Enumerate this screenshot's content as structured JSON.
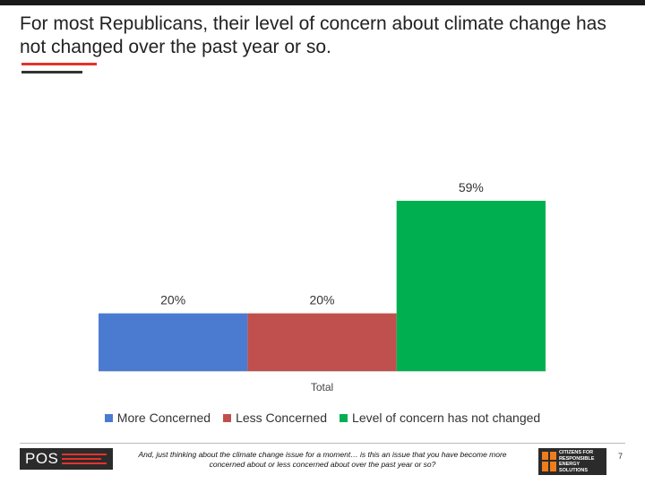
{
  "slide": {
    "title": "For most Republicans, their level of concern about climate change has not changed over the past year or so.",
    "page_number": "7"
  },
  "footer": {
    "question": "And, just thinking about the climate change issue for a moment… is this an issue that you have become more concerned about or less concerned about over the past year or so?",
    "logo_left_text": "POS",
    "logo_right_text": "CITIZENS FOR\nRESPONSIBLE\nENERGY SOLUTIONS"
  },
  "colors": {
    "more": "#4a7bd1",
    "less": "#c0504d",
    "unchanged": "#00b050",
    "accent_red": "#e5322d"
  },
  "chart_data": {
    "type": "bar",
    "categories": [
      "Total"
    ],
    "series": [
      {
        "name": "More Concerned",
        "values": [
          20
        ],
        "label": "20%"
      },
      {
        "name": "Less Concerned",
        "values": [
          20
        ],
        "label": "20%"
      },
      {
        "name": "Level of concern has not changed",
        "values": [
          59
        ],
        "label": "59%"
      }
    ],
    "ylim": [
      0,
      100
    ],
    "grid": false,
    "legend_position": "bottom",
    "value_format": "percent"
  }
}
